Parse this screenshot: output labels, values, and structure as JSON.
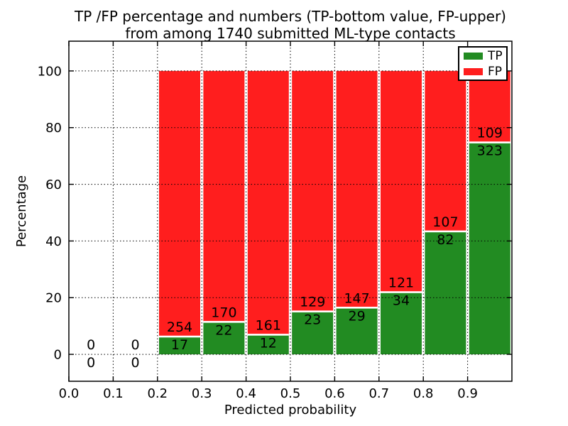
{
  "title": {
    "line1": "TP /FP percentage and numbers (TP-bottom value, FP-upper)",
    "line2": "from among 1740 submitted ML-type contacts"
  },
  "axes": {
    "xlabel": "Predicted probability",
    "ylabel": "Percentage",
    "x_tick_labels": [
      "0.0",
      "0.1",
      "0.2",
      "0.3",
      "0.4",
      "0.5",
      "0.6",
      "0.7",
      "0.8",
      "0.9"
    ],
    "y_tick_labels": [
      "0",
      "20",
      "40",
      "60",
      "80",
      "100"
    ]
  },
  "legend": {
    "position": "upper right",
    "entries": [
      {
        "label": "TP",
        "color": "#228b22"
      },
      {
        "label": "FP",
        "color": "#ff1e1e"
      }
    ]
  },
  "colors": {
    "tp_green": "#228b22",
    "fp_red": "#ff1e1e",
    "axis_black": "#000000",
    "background": "#ffffff"
  },
  "chart_data": {
    "type": "bar",
    "stacked": true,
    "normalized": "each bin scaled to 100%",
    "title": "TP /FP percentage and numbers (TP-bottom value, FP-upper) from among 1740 submitted ML-type contacts",
    "xlabel": "Predicted probability",
    "ylabel": "Percentage",
    "xlim": [
      0.0,
      1.0
    ],
    "ylim": [
      -9.5,
      110.5
    ],
    "grid": "dotted, both axes, drawn above bars",
    "legend_position": "upper right",
    "bin_width": 0.1,
    "bin_starts": [
      0.0,
      0.1,
      0.2,
      0.3,
      0.4,
      0.5,
      0.6,
      0.7,
      0.8,
      0.9
    ],
    "series": [
      {
        "name": "TP",
        "color": "#228b22",
        "counts": [
          "0",
          "0",
          "17",
          "22",
          "12",
          "23",
          "29",
          "34",
          "82",
          "323"
        ]
      },
      {
        "name": "FP",
        "color": "#ff1e1e",
        "counts": [
          "0",
          "0",
          "254",
          "170",
          "161",
          "129",
          "147",
          "121",
          "107",
          "109"
        ]
      }
    ],
    "tp_percent_by_bin": [
      null,
      null,
      6.27,
      11.46,
      6.94,
      15.13,
      16.48,
      21.94,
      43.39,
      74.77
    ],
    "total_contacts": 1740
  }
}
